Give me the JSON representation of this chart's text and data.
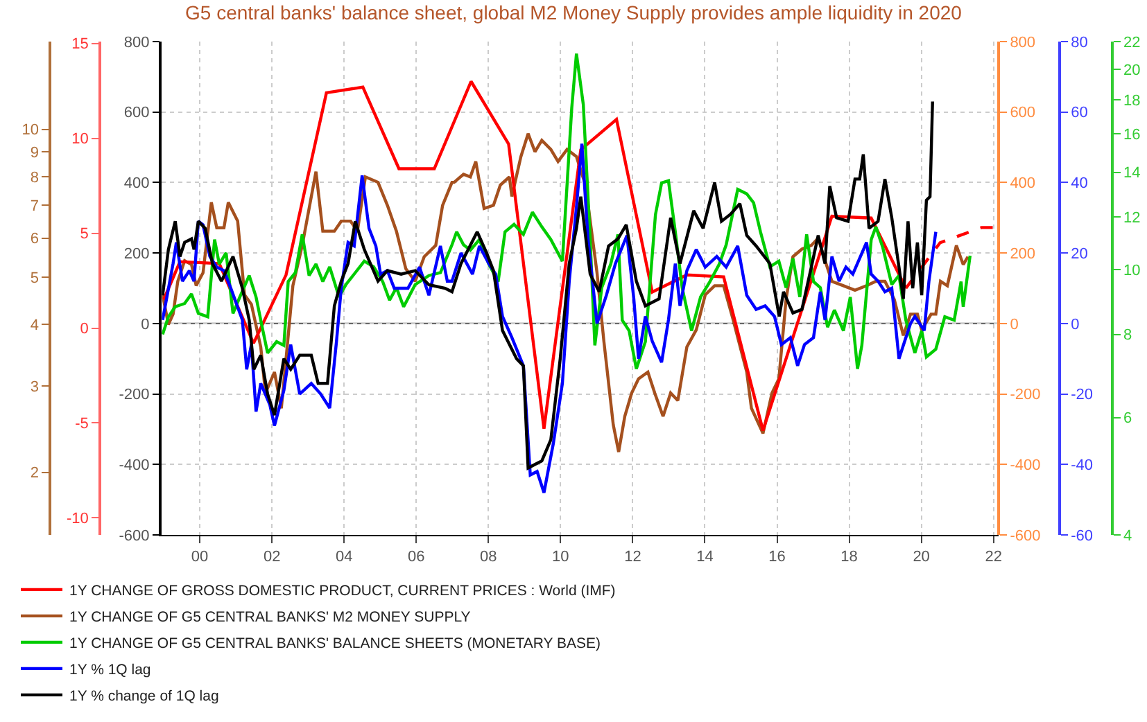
{
  "chart_data": [
    {
      "type": "line",
      "title": "G5 central banks' balance sheet, global M2 Money Supply provides ample liquidity in 2020",
      "xlim": [
        1998.95,
        2022.15
      ],
      "xticks": [
        {
          "value": 2000,
          "label": "00"
        },
        {
          "value": 2002,
          "label": "02"
        },
        {
          "value": 2004,
          "label": "04"
        },
        {
          "value": 2006,
          "label": "06"
        },
        {
          "value": 2008,
          "label": "08"
        },
        {
          "value": 2010,
          "label": "10"
        },
        {
          "value": 2012,
          "label": "12"
        },
        {
          "value": 2014,
          "label": "14"
        },
        {
          "value": 2016,
          "label": "16"
        },
        {
          "value": 2018,
          "label": "18"
        },
        {
          "value": 2020,
          "label": "20"
        },
        {
          "value": 2022,
          "label": "22"
        }
      ],
      "ylim": [
        -600,
        800
      ],
      "yticks": [
        -600,
        -400,
        -200,
        0,
        200,
        400,
        600,
        800
      ],
      "y2lim": [
        1.49,
        15.1
      ],
      "y2ticks": [
        2,
        3,
        4,
        5,
        6,
        7,
        8,
        9,
        10
      ],
      "y3lim": [
        -10.9,
        15.1
      ],
      "y3ticks": [
        -10,
        -5,
        0,
        5,
        10,
        15
      ],
      "log": "y2",
      "grid": true,
      "legend": "bottom",
      "marker": "none",
      "ref_lines": [
        {
          "axis": "y",
          "value": 0,
          "color": "#666666"
        }
      ],
      "series": [
        {
          "name": "1Y CHANGE OF GROSS DOMESTIC PRODUCT, CURRENT PRICES : World (IMF)",
          "color": "#ff0000",
          "axis": "y3",
          "line_style": "solid",
          "x": [
            1999.0,
            1999.45,
            2000.54,
            2001.49,
            2002.39,
            2003.51,
            2004.52,
            2005.52,
            2006.5,
            2007.52,
            2008.56,
            2009.54,
            2010.56,
            2011.55,
            2012.54,
            2013.5,
            2014.52,
            2015.61,
            2017.52,
            2018.61,
            2019.57
          ],
          "values": [
            1.5,
            3.5,
            3.4,
            -0.8,
            2.8,
            12.4,
            12.7,
            8.4,
            8.4,
            13.0,
            9.7,
            -5.3,
            9.4,
            11.0,
            1.9,
            2.8,
            2.7,
            -5.4,
            5.9,
            5.8,
            2.1
          ]
        },
        {
          "color": "#ff0000",
          "axis": "y3",
          "line_style": "dashed",
          "x": [
            2019.57,
            2020.52,
            2021.67,
            2022.12
          ],
          "values": [
            2.1,
            4.5,
            5.3,
            5.3
          ]
        },
        {
          "name": "1Y CHANGE OF G5 CENTRAL BANKS' M2 MONEY SUPPLY",
          "color": "#a5501e",
          "axis": "y2",
          "line_style": "solid",
          "x": [
            1998.97,
            1999.13,
            1999.26,
            1999.39,
            1999.58,
            1999.77,
            1999.9,
            2000.09,
            2000.32,
            2000.47,
            2000.67,
            2000.79,
            2001.05,
            2001.24,
            2001.43,
            2001.69,
            2001.82,
            2002.07,
            2002.26,
            2002.39,
            2002.58,
            2002.84,
            2003.03,
            2003.22,
            2003.41,
            2003.73,
            2003.92,
            2004.18,
            2004.37,
            2004.59,
            2004.94,
            2005.2,
            2005.45,
            2005.71,
            2005.97,
            2006.22,
            2006.54,
            2006.73,
            2006.99,
            2007.05,
            2007.31,
            2007.5,
            2007.65,
            2007.88,
            2008.14,
            2008.33,
            2008.58,
            2008.65,
            2008.9,
            2009.1,
            2009.29,
            2009.48,
            2009.73,
            2009.93,
            2010.18,
            2010.44,
            2010.69,
            2011.01,
            2011.2,
            2011.46,
            2011.61,
            2011.78,
            2011.97,
            2012.16,
            2012.42,
            2012.61,
            2012.84,
            2013.05,
            2013.25,
            2013.5,
            2013.76,
            2014.01,
            2014.27,
            2014.52,
            2014.78,
            2015.16,
            2015.29,
            2015.61,
            2015.86,
            2016.05,
            2016.25,
            2016.44,
            2016.69,
            2016.95,
            2017.14,
            2017.33,
            2017.52,
            2017.84,
            2018.16,
            2018.48,
            2018.74,
            2018.99,
            2019.25,
            2019.5,
            2019.7,
            2019.89,
            2020.01,
            2020.27,
            2020.4,
            2020.53,
            2020.72,
            2020.97,
            2021.16,
            2021.29
          ],
          "values": [
            4.6,
            4.0,
            4.2,
            4.9,
            5.4,
            5.3,
            4.8,
            5.1,
            7.1,
            6.3,
            6.3,
            7.1,
            6.5,
            4.6,
            4.4,
            3.6,
            2.9,
            3.2,
            2.7,
            3.4,
            4.8,
            5.8,
            6.9,
            8.2,
            6.2,
            6.2,
            6.5,
            6.5,
            6.2,
            8.0,
            7.8,
            7.0,
            6.2,
            5.2,
            4.9,
            5.5,
            5.8,
            7.0,
            7.8,
            7.8,
            8.1,
            8.0,
            8.6,
            6.9,
            7.0,
            7.7,
            8.0,
            7.3,
            8.8,
            9.8,
            9.0,
            9.5,
            9.1,
            8.6,
            9.1,
            8.8,
            7.7,
            5.1,
            3.7,
            2.5,
            2.2,
            2.6,
            2.9,
            3.1,
            3.2,
            2.9,
            2.6,
            2.9,
            2.8,
            3.6,
            3.9,
            4.6,
            4.8,
            4.8,
            4.1,
            3.2,
            2.7,
            2.4,
            2.9,
            3.1,
            4.5,
            5.5,
            5.7,
            5.8,
            6.0,
            5.4,
            4.9,
            4.8,
            4.7,
            4.8,
            4.9,
            4.9,
            4.5,
            3.8,
            4.2,
            4.2,
            3.9,
            4.2,
            4.2,
            4.9,
            4.8,
            5.8,
            5.3,
            5.5
          ]
        }
      ]
    },
    {
      "type": "line",
      "xlim": [
        1998.95,
        2022.15
      ],
      "tick_labels": "y",
      "ylim": [
        -600,
        800
      ],
      "yticks": [
        -600,
        -400,
        -200,
        0,
        200,
        400,
        600,
        800
      ],
      "y2lim": [
        4,
        22
      ],
      "y2ticks": [
        4,
        6,
        8,
        10,
        12,
        14,
        16,
        18,
        20,
        22
      ],
      "y3lim": [
        -60,
        80
      ],
      "y3ticks": [
        -60,
        -40,
        -20,
        0,
        20,
        40,
        60,
        80
      ],
      "log": "y2",
      "legend": "bottom",
      "marker": "none",
      "series": [
        {
          "name": "1Y CHANGE OF G5 CENTRAL BANKS' BALANCE SHEETS (MONETARY BASE)",
          "color": "#00cc00",
          "axis": "y2",
          "line_style": "solid",
          "x": [
            1998.97,
            1999.13,
            1999.32,
            1999.58,
            1999.77,
            1999.96,
            2000.22,
            2000.41,
            2000.54,
            2000.73,
            2000.92,
            2001.11,
            2001.37,
            2001.56,
            2001.75,
            2001.88,
            2002.13,
            2002.33,
            2002.45,
            2002.65,
            2002.84,
            2003.03,
            2003.22,
            2003.41,
            2003.6,
            2003.86,
            2004.05,
            2004.31,
            2004.56,
            2004.82,
            2005.07,
            2005.26,
            2005.45,
            2005.65,
            2005.97,
            2006.35,
            2006.67,
            2006.99,
            2007.12,
            2007.31,
            2007.5,
            2007.75,
            2008.01,
            2008.27,
            2008.46,
            2008.71,
            2008.97,
            2009.22,
            2009.48,
            2009.73,
            2010.05,
            2010.31,
            2010.44,
            2010.63,
            2010.82,
            2010.95,
            2011.14,
            2011.39,
            2011.59,
            2011.71,
            2011.9,
            2012.1,
            2012.35,
            2012.63,
            2012.8,
            2012.99,
            2013.18,
            2013.37,
            2013.63,
            2013.88,
            2014.14,
            2014.4,
            2014.59,
            2014.91,
            2015.16,
            2015.35,
            2015.54,
            2015.8,
            2016.05,
            2016.25,
            2016.44,
            2016.63,
            2016.82,
            2017.01,
            2017.2,
            2017.4,
            2017.59,
            2017.84,
            2018.03,
            2018.23,
            2018.35,
            2018.61,
            2018.74,
            2018.93,
            2019.18,
            2019.38,
            2019.57,
            2019.82,
            2020.01,
            2020.14,
            2020.4,
            2020.65,
            2020.91,
            2021.1,
            2021.16,
            2021.35
          ],
          "values": [
            8.0,
            8.5,
            8.8,
            8.9,
            9.2,
            8.6,
            8.5,
            11.1,
            10.2,
            10.6,
            8.6,
            9.1,
            9.8,
            9.1,
            8.1,
            7.5,
            7.8,
            7.7,
            9.6,
            9.9,
            11.3,
            9.8,
            10.2,
            9.6,
            10.1,
            9.1,
            9.5,
            9.9,
            10.3,
            10.1,
            9.6,
            9.0,
            9.4,
            8.8,
            9.5,
            9.8,
            9.9,
            10.9,
            11.4,
            10.9,
            10.7,
            11.1,
            10.2,
            9.6,
            11.4,
            11.7,
            11.3,
            12.2,
            11.6,
            11.1,
            10.3,
            17.5,
            21.1,
            17.7,
            11.1,
            7.7,
            9.4,
            10.2,
            11.3,
            8.4,
            8.1,
            7.1,
            7.8,
            12.1,
            13.5,
            13.6,
            11.4,
            9.4,
            8.1,
            9.1,
            9.6,
            10.2,
            10.9,
            13.2,
            13.0,
            12.6,
            11.4,
            10.1,
            10.3,
            9.4,
            10.4,
            9.1,
            11.3,
            9.6,
            9.4,
            8.2,
            8.7,
            8.1,
            9.1,
            7.1,
            7.7,
            11.1,
            11.6,
            10.8,
            9.5,
            9.8,
            8.4,
            7.5,
            8.1,
            7.4,
            7.6,
            8.5,
            8.4,
            9.6,
            8.8,
            10.5
          ]
        },
        {
          "name": "1Y % 1Q lag",
          "color": "#0000ff",
          "axis": "y3",
          "line_style": "solid",
          "x": [
            1998.97,
            1999.26,
            1999.35,
            1999.52,
            1999.71,
            1999.84,
            1999.96,
            2000.09,
            2000.28,
            2000.47,
            2000.67,
            2000.86,
            2001.18,
            2001.3,
            2001.43,
            2001.56,
            2001.69,
            2001.94,
            2002.07,
            2002.33,
            2002.52,
            2002.77,
            2003.09,
            2003.35,
            2003.6,
            2003.79,
            2003.92,
            2004.11,
            2004.28,
            2004.5,
            2004.69,
            2004.88,
            2005.01,
            2005.2,
            2005.39,
            2005.77,
            2006.09,
            2006.35,
            2006.67,
            2006.86,
            2006.99,
            2007.24,
            2007.56,
            2007.75,
            2008.01,
            2008.2,
            2008.39,
            2008.65,
            2008.97,
            2009.16,
            2009.35,
            2009.54,
            2009.8,
            2010.05,
            2010.24,
            2010.44,
            2010.59,
            2010.76,
            2011.01,
            2011.27,
            2011.52,
            2011.84,
            2012.03,
            2012.16,
            2012.35,
            2012.54,
            2012.8,
            2012.99,
            2013.18,
            2013.31,
            2013.5,
            2013.76,
            2014.01,
            2014.33,
            2014.59,
            2014.91,
            2015.16,
            2015.42,
            2015.67,
            2015.93,
            2016.12,
            2016.37,
            2016.57,
            2016.76,
            2017.01,
            2017.2,
            2017.33,
            2017.52,
            2017.72,
            2017.91,
            2018.1,
            2018.48,
            2018.61,
            2018.8,
            2018.99,
            2019.18,
            2019.38,
            2019.57,
            2019.7,
            2019.82,
            2020.08,
            2020.21,
            2020.4
          ],
          "values": [
            1,
            17,
            23,
            12,
            15,
            12,
            29,
            28,
            19,
            16,
            15,
            10,
            1,
            -13,
            -6,
            -25,
            -17,
            -23,
            -29,
            -19,
            -6,
            -20,
            -17,
            -20,
            -24,
            -5,
            10,
            23,
            22,
            42,
            27,
            22,
            14,
            15,
            10,
            10,
            16,
            8,
            22,
            12,
            12,
            20,
            14,
            22,
            17,
            14,
            2,
            -4,
            -12,
            -43,
            -42,
            -48,
            -34,
            -17,
            12,
            33,
            51,
            24,
            0,
            8,
            17,
            25,
            7,
            -10,
            2,
            -5,
            -11,
            1,
            17,
            5,
            15,
            21,
            16,
            19,
            16,
            22,
            8,
            4,
            5,
            2,
            -6,
            -4,
            -12,
            -6,
            -4,
            9,
            1,
            19,
            12,
            16,
            14,
            23,
            14,
            12,
            9,
            10,
            -10,
            -4,
            0,
            2,
            -2,
            12,
            26
          ]
        },
        {
          "name": "1Y % change of 1Q lag",
          "color": "#000000",
          "axis": "y3",
          "line_style": "solid",
          "x": [
            1998.97,
            1999.13,
            1999.32,
            1999.45,
            1999.58,
            1999.77,
            1999.84,
            1999.96,
            2000.15,
            2000.35,
            2000.6,
            2000.92,
            2001.18,
            2001.37,
            2001.5,
            2001.69,
            2001.88,
            2002.07,
            2002.33,
            2002.52,
            2002.77,
            2003.09,
            2003.28,
            2003.54,
            2003.73,
            2003.92,
            2004.11,
            2004.31,
            2004.56,
            2004.94,
            2005.2,
            2005.58,
            2005.97,
            2006.35,
            2006.8,
            2006.99,
            2007.24,
            2007.69,
            2007.95,
            2008.14,
            2008.39,
            2008.78,
            2008.97,
            2009.1,
            2009.29,
            2009.48,
            2009.73,
            2009.99,
            2010.24,
            2010.44,
            2010.56,
            2010.82,
            2011.07,
            2011.33,
            2011.59,
            2011.82,
            2012.1,
            2012.35,
            2012.73,
            2013.05,
            2013.31,
            2013.69,
            2013.95,
            2014.27,
            2014.46,
            2014.71,
            2014.97,
            2015.16,
            2015.42,
            2015.8,
            2016.06,
            2016.18,
            2016.44,
            2016.69,
            2016.95,
            2017.14,
            2017.33,
            2017.46,
            2017.65,
            2017.97,
            2018.16,
            2018.29,
            2018.39,
            2018.55,
            2018.8,
            2018.99,
            2019.18,
            2019.38,
            2019.5,
            2019.63,
            2019.76,
            2019.89,
            2020.01,
            2020.14,
            2020.24,
            2020.31
          ],
          "values": [
            8,
            21,
            29,
            19,
            23,
            24,
            21,
            29,
            27,
            17,
            12,
            19,
            10,
            1,
            -13,
            -9,
            -20,
            -26,
            -10,
            -13,
            -9,
            -9,
            -17,
            -17,
            5,
            12,
            17,
            29,
            21,
            12,
            15,
            14,
            15,
            11,
            10,
            9,
            17,
            26,
            20,
            15,
            -2,
            -10,
            -12,
            -41,
            -40,
            -39,
            -33,
            -10,
            17,
            27,
            36,
            14,
            9,
            22,
            24,
            28,
            12,
            5,
            7,
            30,
            17,
            32,
            27,
            40,
            29,
            31,
            34,
            25,
            22,
            17,
            2,
            9,
            3,
            4,
            16,
            25,
            17,
            39,
            30,
            29,
            41,
            41,
            48,
            27,
            29,
            41,
            30,
            16,
            7,
            29,
            10,
            23,
            8,
            35,
            36,
            63
          ]
        }
      ]
    }
  ]
}
